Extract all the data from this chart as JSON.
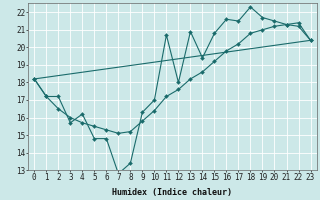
{
  "xlabel": "Humidex (Indice chaleur)",
  "bg_color": "#cce8e8",
  "line_color": "#1a6b6b",
  "grid_color": "#ffffff",
  "xlim": [
    -0.5,
    23.5
  ],
  "ylim": [
    13,
    22.5
  ],
  "yticks": [
    13,
    14,
    15,
    16,
    17,
    18,
    19,
    20,
    21,
    22
  ],
  "xticks": [
    0,
    1,
    2,
    3,
    4,
    5,
    6,
    7,
    8,
    9,
    10,
    11,
    12,
    13,
    14,
    15,
    16,
    17,
    18,
    19,
    20,
    21,
    22,
    23
  ],
  "line1_x": [
    0,
    1,
    2,
    3,
    4,
    5,
    6,
    7,
    8,
    9,
    10,
    11,
    12,
    13,
    14,
    15,
    16,
    17,
    18,
    19,
    20,
    21,
    22,
    23
  ],
  "line1_y": [
    18.2,
    17.2,
    17.2,
    15.7,
    16.2,
    14.8,
    14.8,
    12.8,
    13.4,
    16.3,
    17.0,
    20.7,
    18.0,
    20.9,
    19.4,
    20.8,
    21.6,
    21.5,
    22.3,
    21.7,
    21.5,
    21.3,
    21.2,
    20.4
  ],
  "line2_x": [
    0,
    1,
    2,
    3,
    4,
    5,
    6,
    7,
    8,
    9,
    10,
    11,
    12,
    13,
    14,
    15,
    16,
    17,
    18,
    19,
    20,
    21,
    22,
    23
  ],
  "line2_y": [
    18.2,
    17.2,
    16.5,
    16.0,
    15.7,
    15.5,
    15.3,
    15.1,
    15.2,
    15.8,
    16.4,
    17.2,
    17.6,
    18.2,
    18.6,
    19.2,
    19.8,
    20.2,
    20.8,
    21.0,
    21.2,
    21.3,
    21.4,
    20.4
  ],
  "line3_x": [
    0,
    23
  ],
  "line3_y": [
    18.2,
    20.4
  ],
  "xlabel_fontsize": 6,
  "tick_fontsize": 5.5,
  "line_width": 0.8,
  "marker_size": 2.0
}
